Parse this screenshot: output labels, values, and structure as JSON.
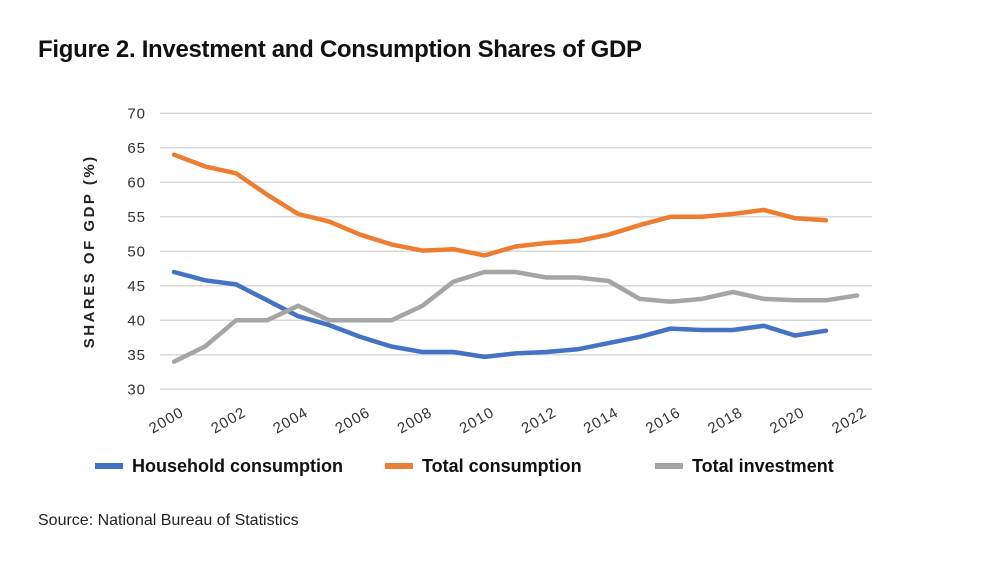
{
  "chart_data": {
    "type": "line",
    "title": "Figure 2. Investment and Consumption Shares of GDP",
    "ylabel": "SHARES OF GDP (%)",
    "xlabel": "",
    "ylim": [
      30,
      70
    ],
    "yticks": [
      30,
      35,
      40,
      45,
      50,
      55,
      60,
      65,
      70
    ],
    "xlim": [
      2000,
      2022
    ],
    "xticks": [
      2000,
      2002,
      2004,
      2006,
      2008,
      2010,
      2012,
      2014,
      2016,
      2018,
      2020,
      2022
    ],
    "grid": "horizontal",
    "legend": "bottom",
    "x": [
      2000,
      2001,
      2002,
      2003,
      2004,
      2005,
      2006,
      2007,
      2008,
      2009,
      2010,
      2011,
      2012,
      2013,
      2014,
      2015,
      2016,
      2017,
      2018,
      2019,
      2020,
      2021,
      2022
    ],
    "series": [
      {
        "name": "Household consumption",
        "color": "#4472C4",
        "values": [
          47.0,
          45.8,
          45.2,
          42.9,
          40.6,
          39.3,
          37.6,
          36.2,
          35.4,
          35.4,
          34.7,
          35.2,
          35.4,
          35.8,
          36.7,
          37.6,
          38.8,
          38.6,
          38.6,
          39.2,
          37.8,
          38.5,
          null
        ]
      },
      {
        "name": "Total consumption",
        "color": "#ED7D31",
        "values": [
          64.0,
          62.3,
          61.3,
          58.2,
          55.4,
          54.3,
          52.4,
          51.0,
          50.1,
          50.3,
          49.4,
          50.7,
          51.2,
          51.5,
          52.4,
          53.8,
          55.0,
          55.0,
          55.4,
          56.0,
          54.8,
          54.5,
          null
        ]
      },
      {
        "name": "Total investment",
        "color": "#A5A5A5",
        "values": [
          34.0,
          36.2,
          40.0,
          40.0,
          42.1,
          40.0,
          40.0,
          40.0,
          42.1,
          45.6,
          47.0,
          47.0,
          46.2,
          46.2,
          45.7,
          43.1,
          42.7,
          43.1,
          44.1,
          43.1,
          42.9,
          42.9,
          43.6
        ]
      }
    ]
  },
  "source": "Source: National Bureau of Statistics"
}
